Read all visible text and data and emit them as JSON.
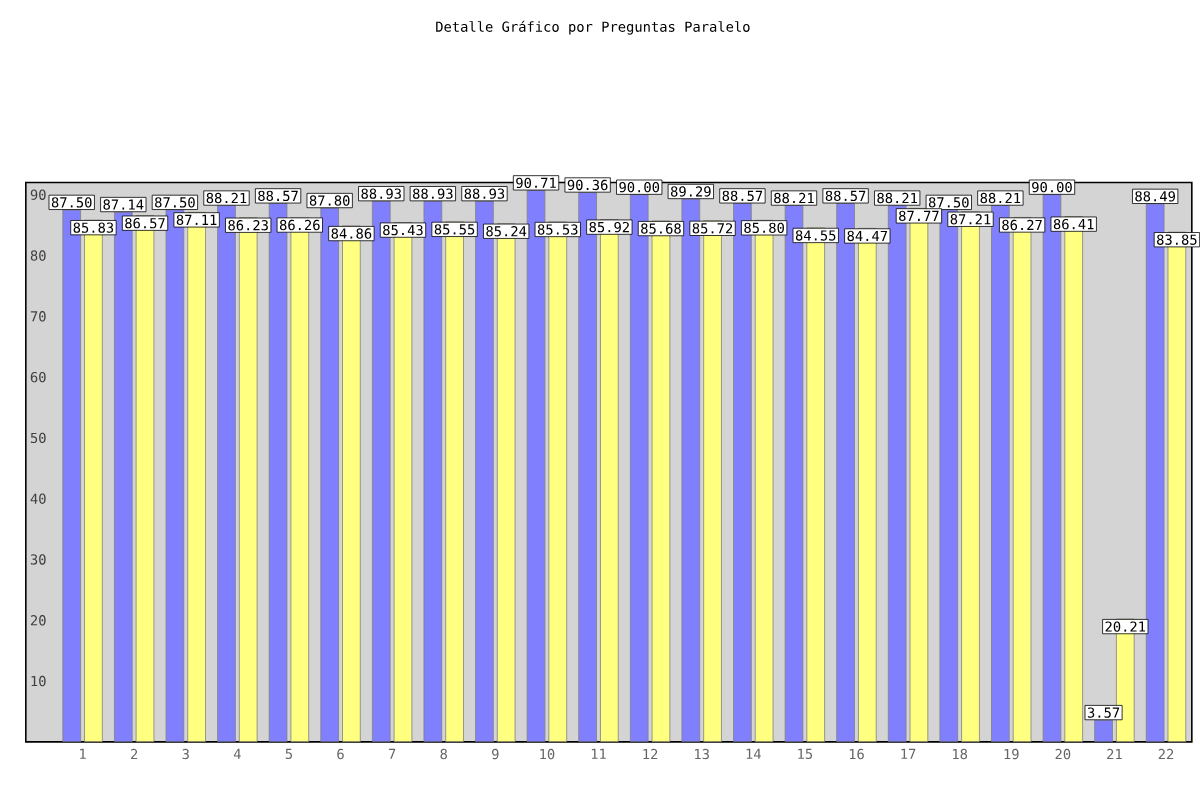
{
  "chart_data": {
    "type": "bar",
    "title": "Detalle Gráfico por Preguntas Paralelo",
    "categories": [
      "1",
      "2",
      "3",
      "4",
      "5",
      "6",
      "7",
      "8",
      "9",
      "10",
      "11",
      "12",
      "13",
      "14",
      "15",
      "16",
      "17",
      "18",
      "19",
      "20",
      "21",
      "22"
    ],
    "series": [
      {
        "color": "#8080ff",
        "values": [
          87.5,
          87.14,
          87.5,
          88.21,
          88.57,
          87.8,
          88.93,
          88.93,
          88.93,
          90.71,
          90.36,
          90.0,
          89.29,
          88.57,
          88.21,
          88.57,
          88.21,
          87.5,
          88.21,
          90.0,
          3.57,
          88.49
        ],
        "value_labels": [
          "87.50",
          "87.14",
          "87.50",
          "88.21",
          "88.57",
          "87.80",
          "88.93",
          "88.93",
          "88.93",
          "90.71",
          "90.36",
          "90.00",
          "89.29",
          "88.57",
          "88.21",
          "88.57",
          "88.21",
          "87.50",
          "88.21",
          "90.00",
          "3.57",
          "88.49"
        ]
      },
      {
        "color": "#ffff80",
        "values": [
          85.83,
          86.57,
          87.11,
          86.23,
          86.26,
          84.86,
          85.43,
          85.55,
          85.24,
          85.53,
          85.92,
          85.68,
          85.72,
          85.8,
          84.55,
          84.47,
          87.77,
          87.21,
          86.27,
          86.41,
          20.21,
          83.85
        ],
        "value_labels": [
          "85.83",
          "86.57",
          "87.11",
          "86.23",
          "86.26",
          "84.86",
          "85.43",
          "85.55",
          "85.24",
          "85.53",
          "85.92",
          "85.68",
          "85.72",
          "85.80",
          "84.55",
          "84.47",
          "87.77",
          "87.21",
          "86.27",
          "86.41",
          "20.21",
          "83.85"
        ]
      }
    ],
    "ylim": [
      0,
      92
    ],
    "yticks": [
      10,
      20,
      30,
      40,
      50,
      60,
      70,
      80,
      90
    ],
    "grid": false
  }
}
